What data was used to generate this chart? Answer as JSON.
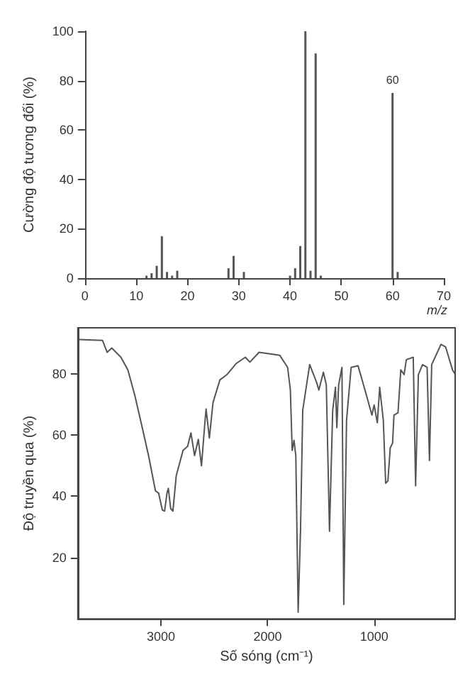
{
  "chart_data": [
    {
      "type": "bar",
      "ylabel": "Cường độ tương đối (%)",
      "xlabel": "m/z",
      "color": "#555555",
      "x": [
        12,
        13,
        14,
        15,
        16,
        17,
        18,
        28,
        29,
        31,
        40,
        41,
        42,
        43,
        44,
        45,
        46,
        60,
        61
      ],
      "values": [
        1,
        2,
        5,
        17,
        2.5,
        1,
        3,
        4,
        9,
        2.5,
        1,
        4,
        13,
        100,
        3,
        91,
        1,
        75,
        2.5
      ],
      "xlim": [
        0,
        70
      ],
      "xticks": [
        0,
        10,
        20,
        30,
        40,
        50,
        60,
        70
      ],
      "ylim": [
        0,
        100
      ],
      "yticks": [
        0,
        20,
        40,
        60,
        80,
        100
      ],
      "annotations": [
        {
          "text": "60",
          "x": 60,
          "y": 75
        }
      ],
      "grid": false
    },
    {
      "type": "line",
      "ylabel": "Độ truyền qua (%)",
      "xlabel": "Số sóng (cm⁻¹)",
      "color": "#555555",
      "xlim": [
        3780,
        240
      ],
      "xticks": [
        3000,
        2000,
        1000
      ],
      "ylim": [
        0,
        95
      ],
      "yticks": [
        20,
        40,
        60,
        80
      ],
      "grid": false,
      "x": [
        3773,
        3549,
        3505,
        3462,
        3376,
        3311,
        3246,
        3181,
        3117,
        3052,
        3022,
        2987,
        2966,
        2944,
        2931,
        2909,
        2888,
        2857,
        2793,
        2750,
        2719,
        2685,
        2650,
        2620,
        2590,
        2577,
        2546,
        2512,
        2447,
        2382,
        2296,
        2209,
        2166,
        2080,
        1885,
        1812,
        1786,
        1769,
        1752,
        1735,
        1713,
        1691,
        1670,
        1605,
        1540,
        1519,
        1476,
        1449,
        1419,
        1389,
        1363,
        1350,
        1333,
        1302,
        1285,
        1259,
        1216,
        1151,
        1086,
        1021,
        1000,
        970,
        948,
        914,
        892,
        871,
        849,
        827,
        814,
        776,
        750,
        719,
        698,
        633,
        611,
        585,
        546,
        503,
        481,
        460,
        373,
        330,
        265,
        243
      ],
      "values": [
        91.2,
        90.9,
        87,
        88.4,
        85.4,
        81.3,
        73,
        63.2,
        53.3,
        41.8,
        41,
        35.5,
        35.2,
        41,
        42.6,
        36,
        35.2,
        46.7,
        55,
        56.3,
        60.7,
        53.3,
        58.6,
        50,
        63.2,
        68.5,
        59,
        70.6,
        78,
        79.7,
        83.3,
        85.4,
        83.8,
        87,
        86,
        82.1,
        74.7,
        55,
        58.3,
        53.3,
        2.2,
        28.6,
        68.1,
        83,
        77.2,
        74.7,
        80.5,
        76.4,
        28.6,
        68.1,
        75.6,
        62.4,
        76.4,
        82.1,
        4.7,
        64.8,
        82.1,
        82.6,
        74.7,
        66.5,
        69.8,
        64,
        75.6,
        64.8,
        44.3,
        45,
        55.8,
        57.4,
        66.5,
        67.3,
        81.3,
        79.7,
        84.6,
        85.4,
        43.4,
        79.7,
        83,
        82.1,
        51.7,
        83,
        89.6,
        88.8,
        81.3,
        80
      ]
    }
  ]
}
